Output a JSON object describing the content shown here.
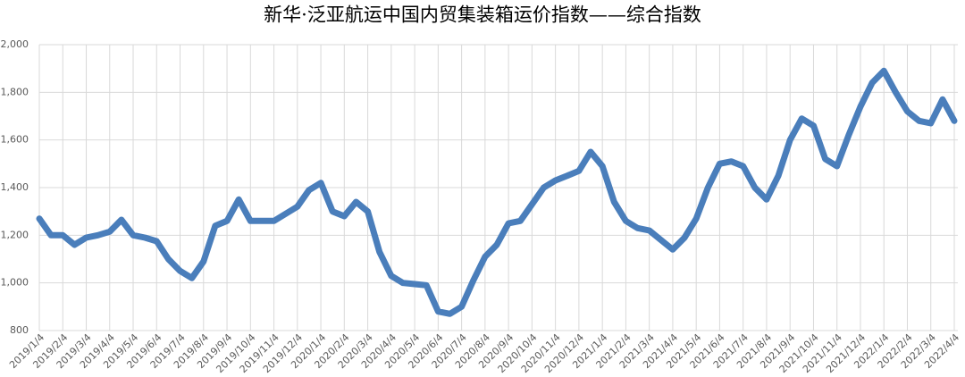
{
  "chart_data": {
    "type": "line",
    "title": "新华·泛亚航运中国内贸集装箱运价指数——综合指数",
    "categories": [
      "2019/1/4",
      null,
      "2019/2/4",
      null,
      "2019/3/4",
      null,
      "2019/4/4",
      null,
      "2019/5/4",
      null,
      "2019/6/4",
      null,
      "2019/7/4",
      null,
      "2019/8/4",
      null,
      "2019/9/4",
      null,
      "2019/10/4",
      null,
      "2019/11/4",
      null,
      "2019/12/4",
      null,
      "2020/1/4",
      null,
      "2020/2/4",
      null,
      "2020/3/4",
      null,
      "2020/4/4",
      null,
      "2020/5/4",
      null,
      "2020/6/4",
      null,
      "2020/7/4",
      null,
      "2020/8/4",
      null,
      "2020/9/4",
      null,
      "2020/10/4",
      null,
      "2020/11/4",
      null,
      "2020/12/4",
      null,
      "2021/1/4",
      null,
      "2021/2/4",
      null,
      "2021/3/4",
      null,
      "2021/4/4",
      null,
      "2021/5/4",
      null,
      "2021/6/4",
      null,
      "2021/7/4",
      null,
      "2021/8/4",
      null,
      "2021/9/4",
      null,
      "2021/10/4",
      null,
      "2021/11/4",
      null,
      "2021/12/4",
      null,
      "2022/1/4",
      null,
      "2022/2/4",
      null,
      "2022/3/4",
      null,
      "2022/4/4"
    ],
    "series": [
      {
        "name": "综合指数",
        "color": "#4a7ebb",
        "values": [
          1270,
          1200,
          1200,
          1160,
          1190,
          1200,
          1215,
          1265,
          1200,
          1190,
          1175,
          1100,
          1050,
          1020,
          1090,
          1240,
          1260,
          1350,
          1260,
          1260,
          1260,
          1290,
          1320,
          1390,
          1420,
          1300,
          1280,
          1340,
          1300,
          1130,
          1030,
          1000,
          995,
          990,
          880,
          870,
          900,
          1010,
          1110,
          1160,
          1250,
          1260,
          1330,
          1400,
          1430,
          1450,
          1470,
          1550,
          1490,
          1340,
          1260,
          1230,
          1220,
          1180,
          1140,
          1190,
          1270,
          1400,
          1500,
          1510,
          1490,
          1400,
          1350,
          1450,
          1600,
          1690,
          1660,
          1520,
          1490,
          1620,
          1740,
          1840,
          1890,
          1800,
          1720,
          1680,
          1670,
          1770,
          1680
        ]
      }
    ],
    "ylim": [
      800,
      2000
    ],
    "yticks": [
      800,
      {
        "value": 1000,
        "label": "1,000"
      },
      {
        "value": 1200,
        "label": "1,200"
      },
      {
        "value": 1400,
        "label": "1,400"
      },
      {
        "value": 1600,
        "label": "1,600"
      },
      {
        "value": 1800,
        "label": "1,800"
      },
      {
        "value": 2000,
        "label": "2,000"
      }
    ],
    "grid": true
  }
}
